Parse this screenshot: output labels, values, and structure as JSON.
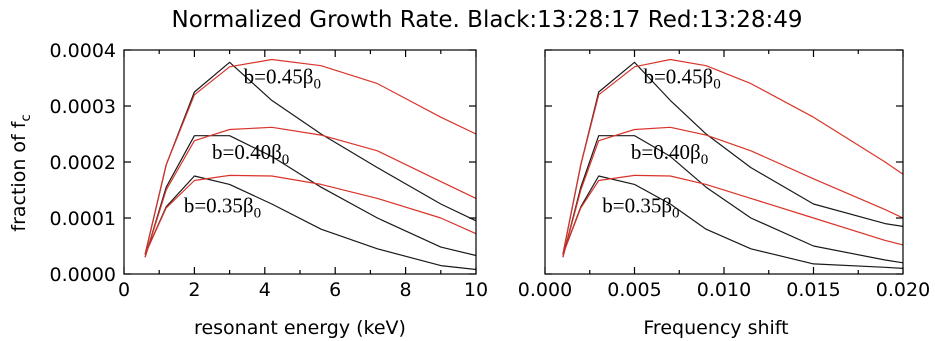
{
  "figure": {
    "title": "Normalized Growth Rate. Black:13:28:17 Red:13:28:49",
    "colors": {
      "black_series": "#1a1a1a",
      "red_series": "#d9342b"
    }
  },
  "chart_data": [
    {
      "type": "line",
      "xlabel": "resonant energy (keV)",
      "ylabel": "fraction of f_c",
      "ylabel_parts": {
        "main": "fraction of f",
        "sub": "c"
      },
      "xlim": [
        0,
        10
      ],
      "ylim": [
        0,
        0.0004
      ],
      "x_ticks": [
        "0",
        "2",
        "4",
        "6",
        "8",
        "10"
      ],
      "x_tick_values": [
        0,
        2,
        4,
        6,
        8,
        10
      ],
      "y_ticks": [
        "0.0000",
        "0.0001",
        "0.0002",
        "0.0003",
        "0.0004"
      ],
      "y_tick_values": [
        0,
        0.0001,
        0.0002,
        0.0003,
        0.0004
      ],
      "annotations": [
        {
          "main": "b=0.45β",
          "sub": "0",
          "x": 3.4,
          "y": 0.00034
        },
        {
          "main": "b=0.40β",
          "sub": "0",
          "x": 2.5,
          "y": 0.000205
        },
        {
          "main": "b=0.35β",
          "sub": "0",
          "x": 1.7,
          "y": 0.00011
        }
      ],
      "series": [
        {
          "group": "b=0.45β0",
          "color": "black",
          "x": [
            0.6,
            1.2,
            2.0,
            3.0,
            4.2,
            5.6,
            7.2,
            9.0,
            10.0
          ],
          "y": [
            3.5e-05,
            0.000195,
            0.000325,
            0.000378,
            0.00031,
            0.00025,
            0.00019,
            0.000125,
            9.5e-05
          ]
        },
        {
          "group": "b=0.45β0",
          "color": "red",
          "x": [
            0.6,
            1.2,
            2.0,
            3.0,
            4.2,
            5.6,
            7.2,
            9.0,
            10.0
          ],
          "y": [
            3.5e-05,
            0.000195,
            0.00032,
            0.00037,
            0.000383,
            0.000372,
            0.00034,
            0.00028,
            0.00025
          ]
        },
        {
          "group": "b=0.40β0",
          "color": "black",
          "x": [
            0.6,
            1.2,
            2.0,
            3.0,
            4.2,
            5.6,
            7.2,
            9.0,
            10.0
          ],
          "y": [
            3e-05,
            0.000155,
            0.000247,
            0.000247,
            0.00021,
            0.000155,
            0.0001,
            4.8e-05,
            3.3e-05
          ]
        },
        {
          "group": "b=0.40β0",
          "color": "red",
          "x": [
            0.6,
            1.2,
            2.0,
            3.0,
            4.2,
            5.6,
            7.2,
            9.0,
            10.0
          ],
          "y": [
            3e-05,
            0.00015,
            0.000238,
            0.000258,
            0.000262,
            0.000248,
            0.00022,
            0.000165,
            0.000135
          ]
        },
        {
          "group": "b=0.35β0",
          "color": "black",
          "x": [
            0.6,
            1.2,
            2.0,
            3.0,
            4.2,
            5.6,
            7.2,
            9.0,
            10.0
          ],
          "y": [
            3.5e-05,
            0.00012,
            0.000175,
            0.00016,
            0.000125,
            8e-05,
            4.5e-05,
            1.5e-05,
            8e-06
          ]
        },
        {
          "group": "b=0.35β0",
          "color": "red",
          "x": [
            0.6,
            1.2,
            2.0,
            3.0,
            4.2,
            5.6,
            7.2,
            9.0,
            10.0
          ],
          "y": [
            3.5e-05,
            0.000118,
            0.000167,
            0.000176,
            0.000175,
            0.00016,
            0.000135,
            0.0001,
            7.2e-05
          ]
        }
      ]
    },
    {
      "type": "line",
      "xlabel": "Frequency shift",
      "xlim": [
        0,
        0.02
      ],
      "ylim": [
        0,
        0.0004
      ],
      "x_ticks": [
        "0.000",
        "0.005",
        "0.010",
        "0.015",
        "0.020"
      ],
      "x_tick_values": [
        0,
        0.005,
        0.01,
        0.015,
        0.02
      ],
      "y_tick_values": [
        0,
        0.0001,
        0.0002,
        0.0003,
        0.0004
      ],
      "annotations": [
        {
          "main": "b=0.45β",
          "sub": "0",
          "x": 0.0055,
          "y": 0.00034
        },
        {
          "main": "b=0.40β",
          "sub": "0",
          "x": 0.0048,
          "y": 0.000205
        },
        {
          "main": "b=0.35β",
          "sub": "0",
          "x": 0.0032,
          "y": 0.00011
        }
      ],
      "series": [
        {
          "group": "b=0.45β0",
          "color": "black",
          "x": [
            0.001,
            0.002,
            0.003,
            0.005,
            0.007,
            0.009,
            0.0115,
            0.015,
            0.019,
            0.02
          ],
          "y": [
            3.5e-05,
            0.000195,
            0.000325,
            0.000378,
            0.00031,
            0.00025,
            0.00019,
            0.000125,
            9e-05,
            8.5e-05
          ]
        },
        {
          "group": "b=0.45β0",
          "color": "red",
          "x": [
            0.001,
            0.002,
            0.003,
            0.005,
            0.007,
            0.009,
            0.0115,
            0.015,
            0.019,
            0.02
          ],
          "y": [
            3.5e-05,
            0.000195,
            0.00032,
            0.00037,
            0.000383,
            0.000372,
            0.00034,
            0.00028,
            0.0002,
            0.000178
          ]
        },
        {
          "group": "b=0.40β0",
          "color": "black",
          "x": [
            0.001,
            0.002,
            0.003,
            0.005,
            0.007,
            0.009,
            0.0115,
            0.015,
            0.019,
            0.02
          ],
          "y": [
            3e-05,
            0.000155,
            0.000247,
            0.000247,
            0.00021,
            0.000155,
            0.0001,
            5e-05,
            2.5e-05,
            2e-05
          ]
        },
        {
          "group": "b=0.40β0",
          "color": "red",
          "x": [
            0.001,
            0.002,
            0.003,
            0.005,
            0.007,
            0.009,
            0.0115,
            0.015,
            0.019,
            0.02
          ],
          "y": [
            3e-05,
            0.00015,
            0.000238,
            0.000258,
            0.000262,
            0.000248,
            0.00022,
            0.00017,
            0.000115,
            0.0001
          ]
        },
        {
          "group": "b=0.35β0",
          "color": "black",
          "x": [
            0.001,
            0.002,
            0.003,
            0.005,
            0.007,
            0.009,
            0.0115,
            0.015,
            0.019,
            0.02
          ],
          "y": [
            3.5e-05,
            0.00012,
            0.000175,
            0.00016,
            0.000125,
            8e-05,
            4.5e-05,
            1.8e-05,
            1.2e-05,
            1e-05
          ]
        },
        {
          "group": "b=0.35β0",
          "color": "red",
          "x": [
            0.001,
            0.002,
            0.003,
            0.005,
            0.007,
            0.009,
            0.0115,
            0.015,
            0.019,
            0.02
          ],
          "y": [
            3.5e-05,
            0.000118,
            0.000167,
            0.000176,
            0.000175,
            0.00016,
            0.000135,
            0.0001,
            6e-05,
            5.2e-05
          ]
        }
      ]
    }
  ]
}
